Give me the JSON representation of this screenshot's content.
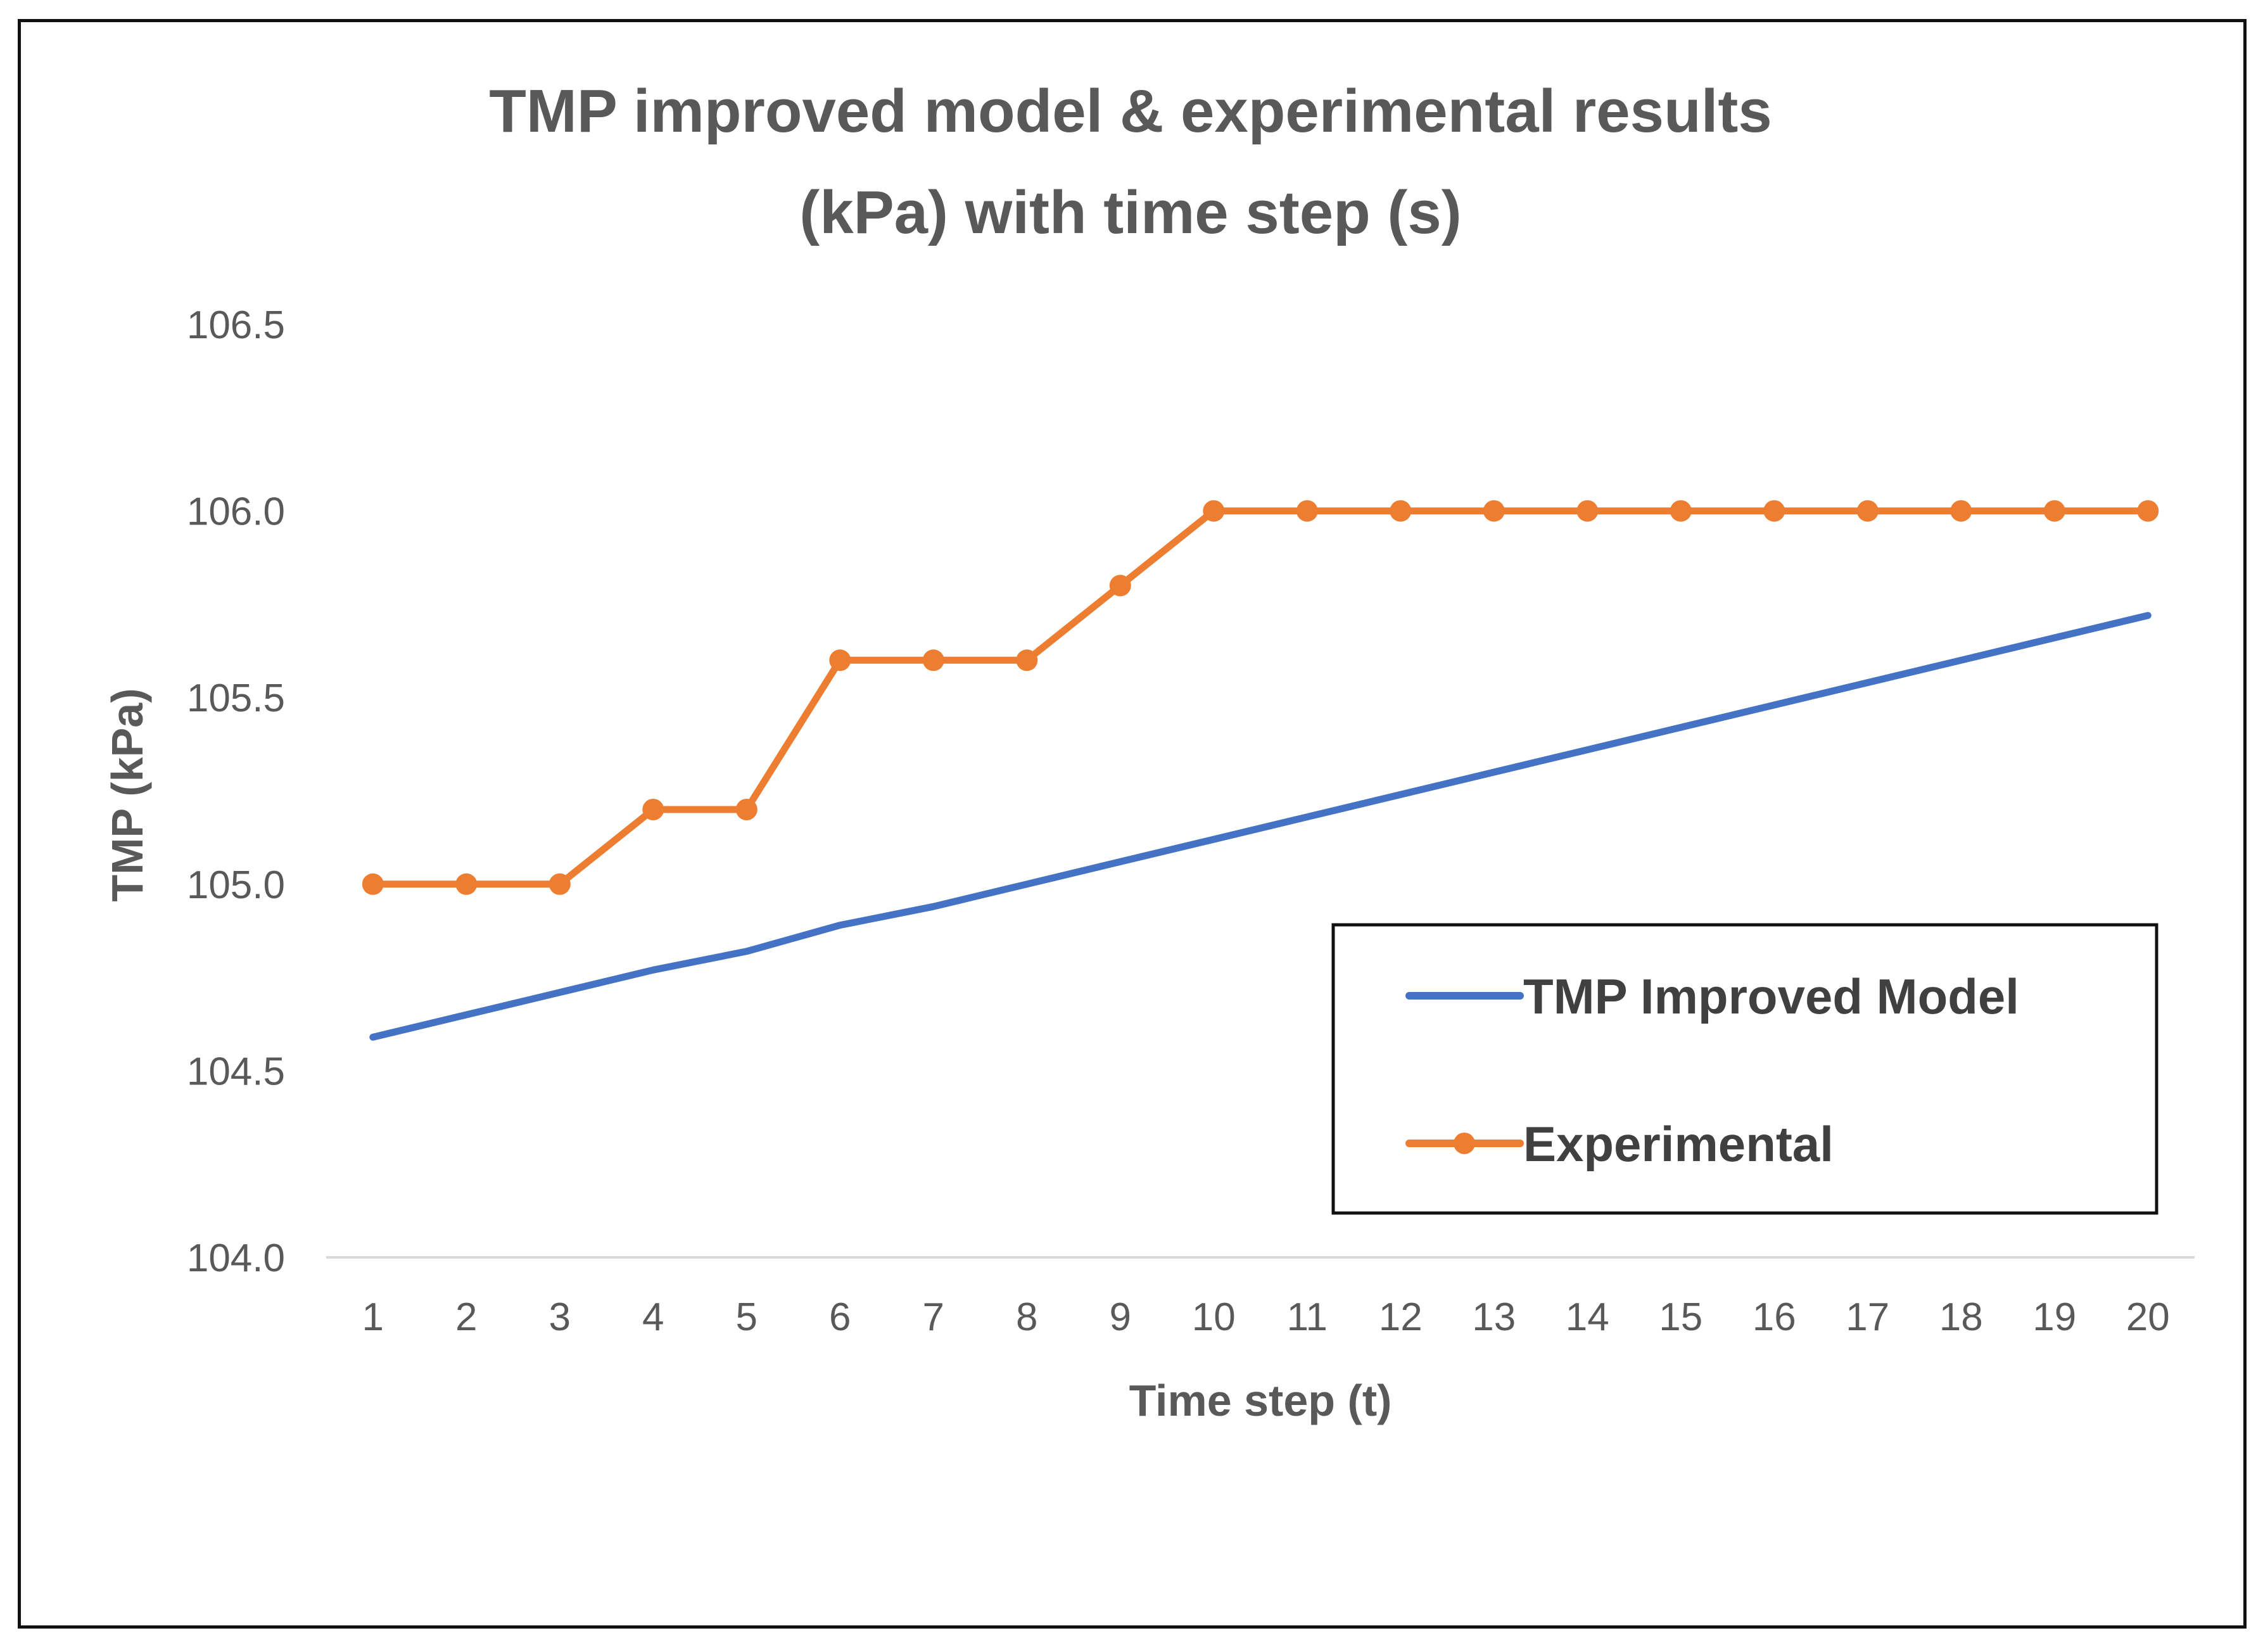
{
  "chart_data": {
    "type": "line",
    "title_lines": [
      "TMP improved model & experimental results",
      "(kPa) with time step (s)"
    ],
    "xlabel": "Time step (t)",
    "ylabel": "TMP (kPa)",
    "x": [
      1,
      2,
      3,
      4,
      5,
      6,
      7,
      8,
      9,
      10,
      11,
      12,
      13,
      14,
      15,
      16,
      17,
      18,
      19,
      20
    ],
    "ylim": [
      104.0,
      106.5
    ],
    "yticks": [
      "104.0",
      "104.5",
      "105.0",
      "105.5",
      "106.0",
      "106.5"
    ],
    "grid": false,
    "legend_position": "bottom-right",
    "series": [
      {
        "name": "TMP Improved Model",
        "color": "#4472C4",
        "marker": false,
        "values": [
          104.59,
          104.65,
          104.71,
          104.77,
          104.82,
          104.89,
          104.94,
          105.0,
          105.06,
          105.12,
          105.18,
          105.24,
          105.3,
          105.36,
          105.42,
          105.48,
          105.54,
          105.6,
          105.66,
          105.72
        ]
      },
      {
        "name": "Experimental",
        "color": "#ED7D31",
        "marker": true,
        "values": [
          105.0,
          105.0,
          105.0,
          105.2,
          105.2,
          105.6,
          105.6,
          105.6,
          105.8,
          106.0,
          106.0,
          106.0,
          106.0,
          106.0,
          106.0,
          106.0,
          106.0,
          106.0,
          106.0,
          106.0
        ]
      }
    ]
  }
}
